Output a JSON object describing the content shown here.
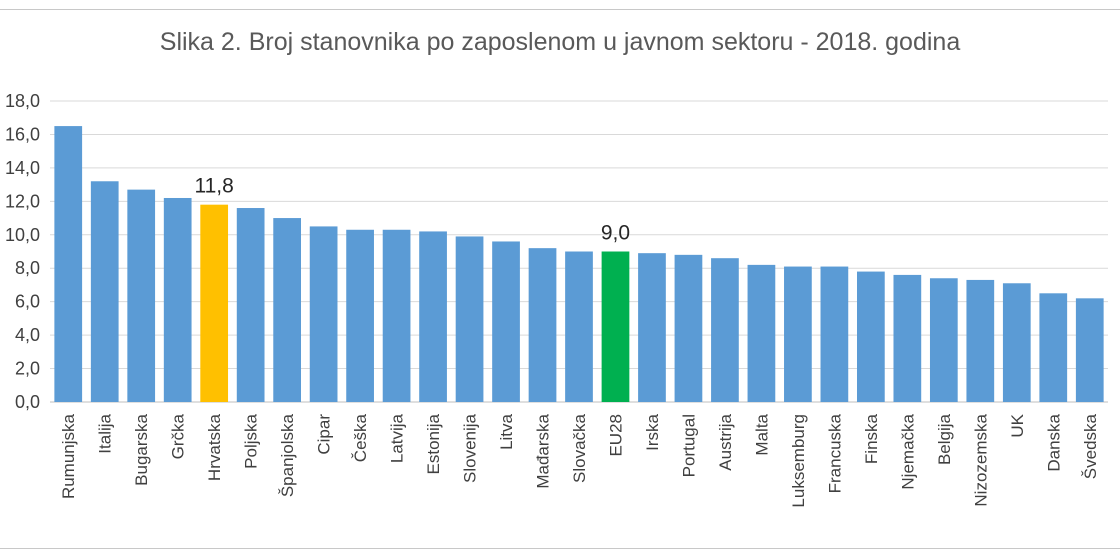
{
  "chart_data": {
    "type": "bar",
    "title": "Slika 2. Broj stanovnika po zaposlenom u javnom sektoru - 2018. godina",
    "xlabel": "",
    "ylabel": "",
    "ylim": [
      0,
      18
    ],
    "yticks": [
      "0,0",
      "2,0",
      "4,0",
      "6,0",
      "8,0",
      "10,0",
      "12,0",
      "14,0",
      "16,0",
      "18,0"
    ],
    "grid": true,
    "legend": "none",
    "categories": [
      "Rumunjska",
      "Italija",
      "Bugarska",
      "Grčka",
      "Hrvatska",
      "Poljska",
      "Španjolska",
      "Cipar",
      "Češka",
      "Latvija",
      "Estonija",
      "Slovenija",
      "Litva",
      "Mađarska",
      "Slovačka",
      "EU28",
      "Irska",
      "Portugal",
      "Austrija",
      "Malta",
      "Luksemburg",
      "Francuska",
      "Finska",
      "Njemačka",
      "Belgija",
      "Nizozemska",
      "UK",
      "Danska",
      "Švedska"
    ],
    "values": [
      16.5,
      13.2,
      12.7,
      12.2,
      11.8,
      11.6,
      11.0,
      10.5,
      10.3,
      10.3,
      10.2,
      9.9,
      9.6,
      9.2,
      9.0,
      9.0,
      8.9,
      8.8,
      8.6,
      8.2,
      8.1,
      8.1,
      7.8,
      7.6,
      7.4,
      7.3,
      7.1,
      6.5,
      6.2
    ],
    "highlight": [
      {
        "category": "Hrvatska",
        "label": "11,8",
        "color": "#FFC000"
      },
      {
        "category": "EU28",
        "label": "9,0",
        "color": "#00B050"
      }
    ],
    "colors": {
      "default": "#5B9BD5",
      "grid": "#d9d9d9",
      "axis": "#bfbfbf"
    }
  }
}
